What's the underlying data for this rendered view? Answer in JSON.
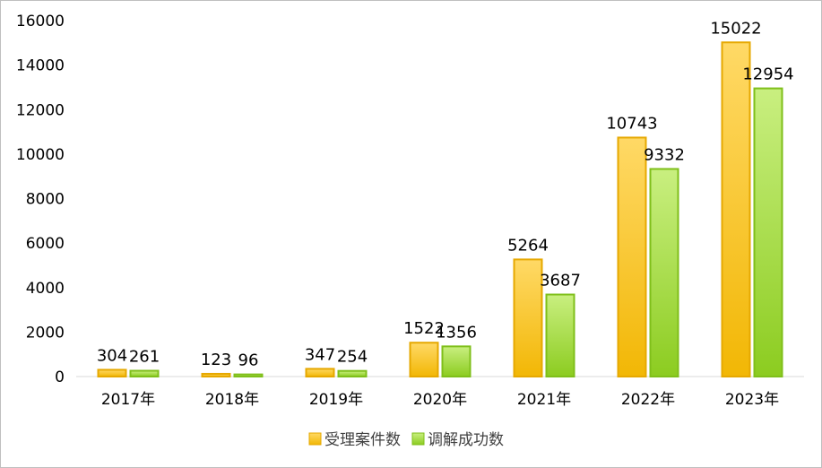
{
  "chart_data": {
    "type": "bar",
    "title": "",
    "xlabel": "",
    "ylabel": "",
    "ylim": [
      0,
      16000
    ],
    "yticks": [
      0,
      2000,
      4000,
      6000,
      8000,
      10000,
      12000,
      14000,
      16000
    ],
    "grid": false,
    "legend_position": "bottom",
    "categories": [
      "2017年",
      "2018年",
      "2019年",
      "2020年",
      "2021年",
      "2022年",
      "2023年"
    ],
    "series": [
      {
        "name": "受理案件数",
        "values": [
          304,
          123,
          347,
          1522,
          5264,
          10743,
          15022
        ],
        "color_top": "#ffd966",
        "color_bottom": "#f2b705",
        "stroke": "#e6a800"
      },
      {
        "name": "调解成功数",
        "values": [
          261,
          96,
          254,
          1356,
          3687,
          9332,
          12954
        ],
        "color_top": "#c9ef80",
        "color_bottom": "#8ccc20",
        "stroke": "#7fbf1a"
      }
    ]
  }
}
